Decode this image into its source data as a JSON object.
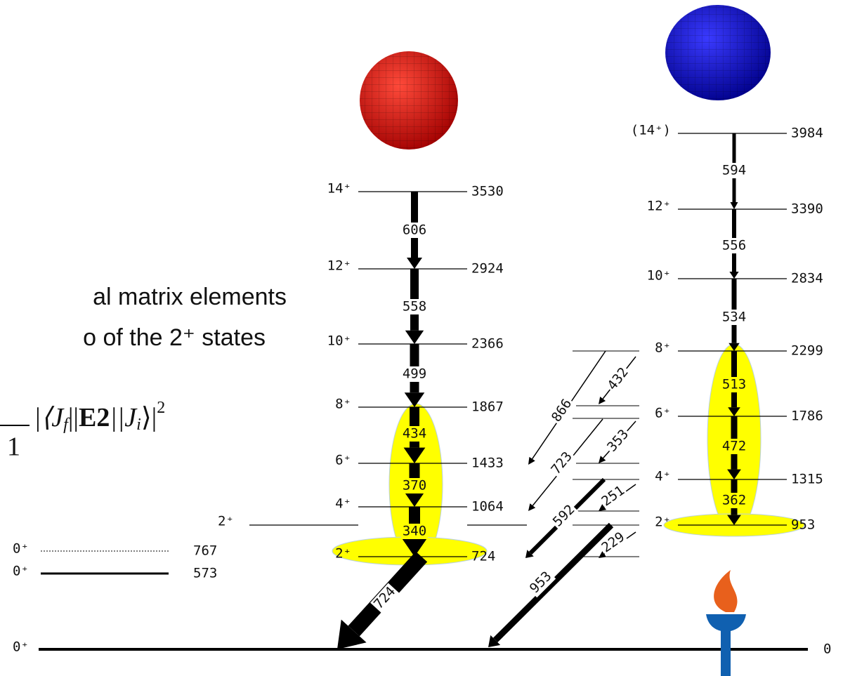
{
  "caption": {
    "line1": "al matrix elements",
    "line2": "o of the 2⁺ states"
  },
  "formula": {
    "denominator": "1",
    "open": "|⟨J",
    "sub_f": "f",
    "bars1": "||",
    "operator": "E2",
    "bars2": "||J",
    "sub_i": "i",
    "close": "⟩|",
    "power": "2"
  },
  "side_levels": [
    {
      "spin": "0⁺",
      "energy": "767",
      "style": "dotted"
    },
    {
      "spin": "0⁺",
      "energy": "573",
      "style": "solid"
    }
  ],
  "ground_state": {
    "spin": "0⁺",
    "energy": "0"
  },
  "gamma_level": {
    "spin": "2⁺"
  },
  "ground_band": {
    "levels": [
      {
        "spin": "14⁺",
        "energy": "3530"
      },
      {
        "spin": "12⁺",
        "energy": "2924"
      },
      {
        "spin": "10⁺",
        "energy": "2366"
      },
      {
        "spin": "8⁺",
        "energy": "1867"
      },
      {
        "spin": "6⁺",
        "energy": "1433"
      },
      {
        "spin": "4⁺",
        "energy": "1064"
      },
      {
        "spin": "2⁺",
        "energy": "724"
      }
    ],
    "transitions": [
      "606",
      "558",
      "499",
      "434",
      "370",
      "340"
    ],
    "decay": "724"
  },
  "side_band": {
    "levels": [
      {
        "spin": "(14⁺)",
        "energy": "3984"
      },
      {
        "spin": "12⁺",
        "energy": "3390"
      },
      {
        "spin": "10⁺",
        "energy": "2834"
      },
      {
        "spin": "8⁺",
        "energy": "2299"
      },
      {
        "spin": "6⁺",
        "energy": "1786"
      },
      {
        "spin": "4⁺",
        "energy": "1315"
      },
      {
        "spin": "2⁺",
        "energy": "953"
      }
    ],
    "transitions": [
      "594",
      "556",
      "534",
      "513",
      "472",
      "362"
    ]
  },
  "interband_transitions": [
    "866",
    "432",
    "723",
    "353",
    "592",
    "251",
    "229",
    "953"
  ]
}
